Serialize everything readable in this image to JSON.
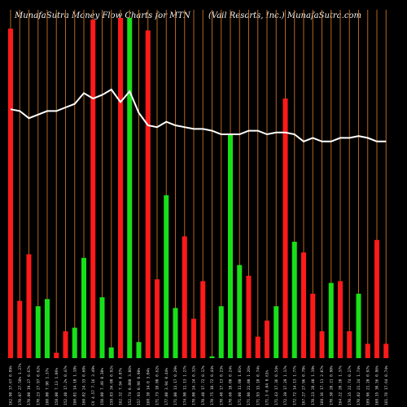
{
  "header": {
    "left": "MunafaSutra  Money Flow  Charts for MTN",
    "right": "(Vail Resorts,  Inc.) MunafaSutra.com"
  },
  "colors": {
    "background": "#000000",
    "up": "#18e018",
    "down": "#ff1a1a",
    "grid": "#b5651d",
    "line": "#ffffff",
    "label": "#dddddd"
  },
  "chart_data": {
    "type": "bar",
    "title": "MunafaSutra  Money Flow  Charts for MTN",
    "subtitle": "(Vail Resorts,  Inc.) MunafaSutra.com",
    "grid": true,
    "ylim": [
      0,
      100
    ],
    "categories": [
      "162.90 37.67 0.99%",
      "170.07 27.58% 1.27%",
      "170.00 19.27 0.67%",
      "170.23 27.97 0.62%",
      "160.00 7.90 1.37%",
      "158.00 7.13 1.06%",
      "152.40 17.2% 0.47%",
      "160.01 14.10 1.18%",
      "160.02 24.33 0.60%",
      "CV  4.57  7.16 3.49%",
      "150.00  7.49 0.30%",
      "159.83 34.00 0.92%",
      "162.32 7.94 0.07%",
      "152.74  0.800 3.06%",
      "157.93 0.98 0.90%",
      "168.10 14.0 3.04%",
      "171.73 10.80 0.62%",
      "177.00 3.94 0.44%",
      "171.00 13.17 0.29%",
      "174.90 11.13 1.27%",
      "170.00 24.24 0.32%",
      "170.40 17.72 0.17%",
      "170.75 10.72 0.44%",
      "170.40 17.13 0.23%",
      "170.60 10.00 0.24%",
      "171.00 11.00 1.01%",
      "171.80 21.00 1.26%",
      "171.93 15.10 0.74%",
      "171.3  0.04 0.61%",
      "171.43 17.36 0.54%",
      "172.39 17.29 1.17%",
      "172.72 14.13 1.77%",
      "167.27 27.96 0.78%",
      "170.23 28.40 1.19%",
      "168.36 17.11 2.07%",
      "170.30 20.21 0.90%",
      "164.22 20.20 1.37%",
      "170.35 22.74 0.27%",
      "170.02 21.24 1.74%",
      "169.96 21.20 0.97%",
      "168.35 30.56 0.96%",
      "161.76 17.64 0.74%"
    ],
    "values": [
      92.0,
      16.0,
      29.0,
      14.5,
      16.5,
      1.5,
      7.5,
      8.5,
      28.0,
      94.5,
      17.0,
      3.0,
      95.0,
      95.0,
      4.5,
      91.5,
      22.0,
      45.5,
      14.0,
      34.0,
      11.0,
      21.5,
      0.5,
      14.5,
      62.5,
      26.0,
      23.0,
      6.0,
      10.5,
      14.5,
      72.5,
      32.5,
      29.5,
      18.0,
      7.5,
      21.0,
      21.5,
      7.5,
      18.0,
      4.0,
      33.0,
      4.0
    ],
    "direction": [
      "down",
      "down",
      "down",
      "up",
      "up",
      "down",
      "down",
      "up",
      "up",
      "down",
      "up",
      "up",
      "down",
      "up",
      "up",
      "down",
      "down",
      "up",
      "up",
      "down",
      "down",
      "down",
      "up",
      "up",
      "up",
      "up",
      "down",
      "down",
      "down",
      "up",
      "down",
      "up",
      "down",
      "down",
      "down",
      "up",
      "down",
      "down",
      "up",
      "down",
      "down",
      "down"
    ],
    "price_line": [
      69.5,
      69.0,
      67.0,
      68.0,
      69.0,
      69.0,
      70.0,
      71.0,
      74.0,
      72.5,
      73.5,
      75.0,
      71.5,
      74.5,
      68.5,
      65.0,
      64.5,
      66.0,
      65.0,
      64.5,
      64.0,
      64.0,
      63.5,
      62.5,
      62.5,
      62.5,
      63.5,
      63.5,
      62.5,
      63.0,
      63.0,
      62.5,
      60.5,
      61.5,
      60.5,
      60.5,
      61.5,
      61.5,
      62.0,
      61.5,
      60.5,
      60.5
    ]
  }
}
